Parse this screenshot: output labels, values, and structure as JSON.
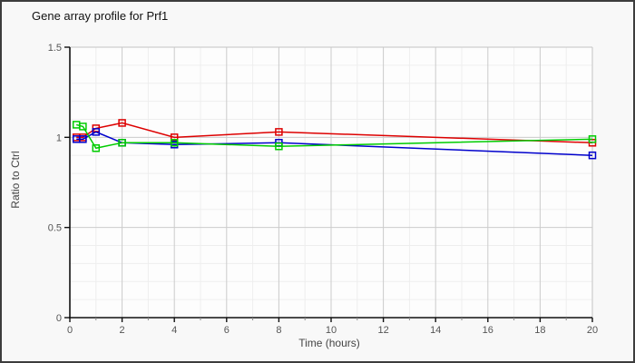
{
  "window": {
    "title": "Gene array profile for Prf1"
  },
  "chart_data": {
    "type": "line",
    "title": "Gene array profile for Prf1",
    "xlabel": "Time (hours)",
    "ylabel": "Ratio to Ctrl",
    "x": [
      0.25,
      0.5,
      1,
      2,
      4,
      8,
      20
    ],
    "series": [
      {
        "name": "red-series",
        "color": "#dd0000",
        "marker": "open-square",
        "values": [
          1.0,
          1.0,
          1.05,
          1.08,
          1.0,
          1.03,
          0.97
        ]
      },
      {
        "name": "blue-series",
        "color": "#0000cc",
        "marker": "open-square",
        "values": [
          0.99,
          0.99,
          1.03,
          0.97,
          0.96,
          0.97,
          0.9
        ]
      },
      {
        "name": "green-series",
        "color": "#00cc00",
        "marker": "open-square",
        "values": [
          1.07,
          1.06,
          0.94,
          0.97,
          0.97,
          0.95,
          0.99
        ]
      }
    ],
    "xlim": [
      0,
      20
    ],
    "ylim": [
      0,
      1.5
    ],
    "x_major_ticks": [
      0,
      2,
      4,
      6,
      8,
      10,
      12,
      14,
      16,
      18,
      20
    ],
    "x_tick_labels": [
      "0",
      "2",
      "4",
      "6",
      "8",
      "10",
      "12",
      "14",
      "16",
      "18",
      "20"
    ],
    "x_minor_step": 1,
    "y_major_ticks": [
      0,
      0.5,
      1,
      1.5
    ],
    "y_tick_labels": [
      "0",
      "0.5",
      "1",
      "1.5"
    ],
    "y_minor_step": 0.1,
    "grid": true,
    "legend": "none",
    "colors": {
      "plot_background": "#fdfdfd",
      "outer_background": "#f8f8f8",
      "minor_grid": "#eeeeee",
      "major_grid": "#cbcbcb",
      "plot_border": "#c4c4c4",
      "axis": "#111111",
      "tick_label": "#555555"
    }
  }
}
